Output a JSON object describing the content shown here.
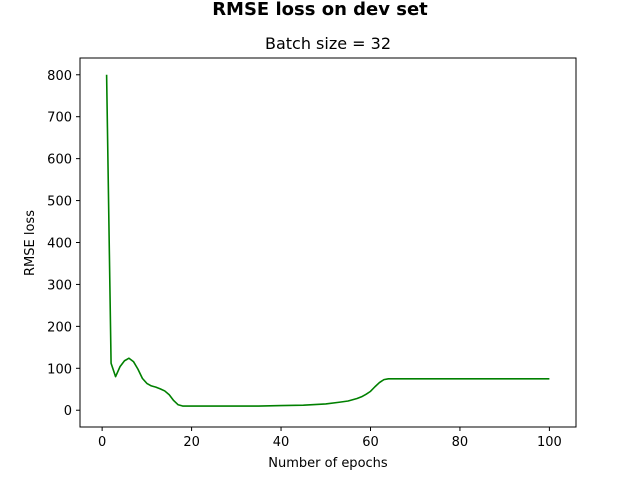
{
  "figure": {
    "suptitle": "RMSE loss on dev set"
  },
  "chart_data": {
    "type": "line",
    "title": "Batch size = 32",
    "xlabel": "Number of epochs",
    "ylabel": "RMSE loss",
    "xlim": [
      -4.95,
      105.95
    ],
    "ylim": [
      -40,
      840
    ],
    "xticks": [
      0,
      20,
      40,
      60,
      80,
      100
    ],
    "yticks": [
      0,
      100,
      200,
      300,
      400,
      500,
      600,
      700,
      800
    ],
    "grid": false,
    "legend": "none",
    "series": [
      {
        "color": "#008000",
        "x": [
          1,
          2,
          3,
          4,
          5,
          6,
          7,
          8,
          9,
          10,
          11,
          12,
          13,
          14,
          15,
          16,
          17,
          18,
          19,
          20,
          25,
          30,
          35,
          40,
          45,
          50,
          53,
          55,
          57,
          58,
          59,
          60,
          61,
          62,
          63,
          64,
          65,
          70,
          80,
          90,
          100
        ],
        "y": [
          800,
          112,
          80,
          104,
          118,
          124,
          116,
          98,
          76,
          64,
          58,
          55,
          51,
          46,
          37,
          23,
          13,
          10,
          10,
          10,
          10,
          10,
          10,
          11,
          12,
          15,
          19,
          22,
          28,
          32,
          38,
          45,
          56,
          66,
          73,
          75,
          75,
          75,
          75,
          75,
          75
        ]
      }
    ]
  }
}
